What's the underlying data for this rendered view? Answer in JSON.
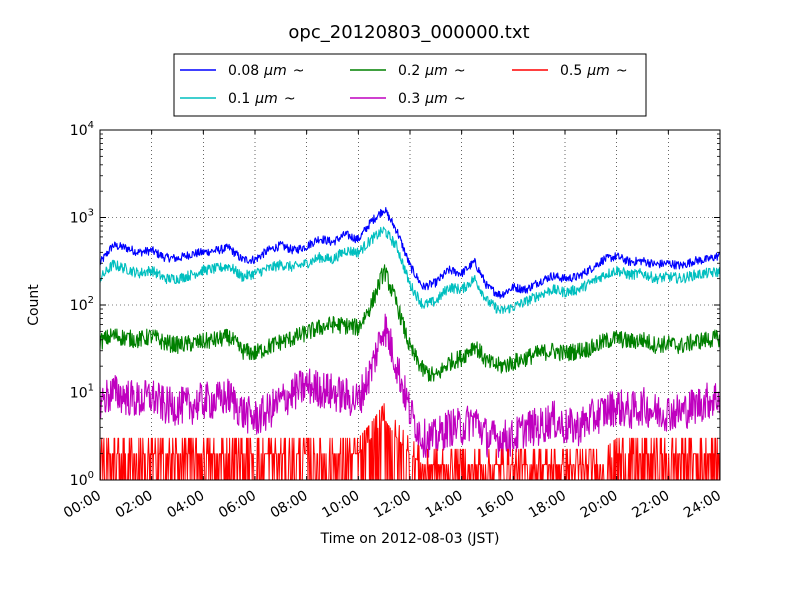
{
  "chart_data": {
    "type": "line",
    "title": "opc_20120803_000000.txt",
    "xlabel": "Time on 2012-08-03 (JST)",
    "ylabel": "Count",
    "x_unit": "hours",
    "xlim": [
      0,
      24
    ],
    "ylim": [
      1,
      10000
    ],
    "yscale": "log",
    "grid": true,
    "legend_position": "top-center",
    "x_ticks": [
      {
        "value": 0,
        "label": "00:00"
      },
      {
        "value": 2,
        "label": "02:00"
      },
      {
        "value": 4,
        "label": "04:00"
      },
      {
        "value": 6,
        "label": "06:00"
      },
      {
        "value": 8,
        "label": "08:00"
      },
      {
        "value": 10,
        "label": "10:00"
      },
      {
        "value": 12,
        "label": "12:00"
      },
      {
        "value": 14,
        "label": "14:00"
      },
      {
        "value": 16,
        "label": "16:00"
      },
      {
        "value": 18,
        "label": "18:00"
      },
      {
        "value": 20,
        "label": "20:00"
      },
      {
        "value": 22,
        "label": "22:00"
      },
      {
        "value": 24,
        "label": "24:00"
      }
    ],
    "y_ticks": [
      {
        "value": 1,
        "base": "10",
        "exp": "0"
      },
      {
        "value": 10,
        "base": "10",
        "exp": "1"
      },
      {
        "value": 100,
        "base": "10",
        "exp": "2"
      },
      {
        "value": 1000,
        "base": "10",
        "exp": "3"
      },
      {
        "value": 10000,
        "base": "10",
        "exp": "4"
      }
    ],
    "x": [
      0,
      0.5,
      1,
      1.5,
      2,
      2.5,
      3,
      3.5,
      4,
      4.5,
      5,
      5.5,
      6,
      6.5,
      7,
      7.5,
      8,
      8.5,
      9,
      9.5,
      10,
      10.5,
      11,
      11.5,
      12,
      12.5,
      13,
      13.5,
      14,
      14.5,
      15,
      15.5,
      16,
      16.5,
      17,
      17.5,
      18,
      18.5,
      19,
      19.5,
      20,
      20.5,
      21,
      21.5,
      22,
      22.5,
      23,
      23.5,
      24
    ],
    "series": [
      {
        "name": "0.08 μm ~",
        "name_text": "0.08",
        "name_unit": "μm",
        "color": "#0000ff",
        "values": [
          300,
          480,
          450,
          400,
          420,
          350,
          340,
          380,
          400,
          420,
          450,
          330,
          330,
          420,
          480,
          420,
          470,
          580,
          520,
          640,
          560,
          900,
          1250,
          700,
          280,
          160,
          180,
          250,
          230,
          310,
          160,
          130,
          160,
          150,
          185,
          215,
          200,
          210,
          260,
          330,
          360,
          310,
          320,
          290,
          300,
          280,
          320,
          330,
          370
        ]
      },
      {
        "name": "0.1 μm ~",
        "name_text": "0.1",
        "name_unit": "μm",
        "color": "#00bfbf",
        "values": [
          200,
          290,
          260,
          230,
          250,
          200,
          200,
          220,
          250,
          260,
          280,
          210,
          230,
          260,
          290,
          270,
          300,
          350,
          330,
          420,
          400,
          560,
          720,
          460,
          170,
          100,
          110,
          160,
          150,
          200,
          110,
          85,
          95,
          110,
          130,
          150,
          140,
          150,
          180,
          220,
          250,
          220,
          230,
          200,
          210,
          200,
          220,
          230,
          240
        ]
      },
      {
        "name": "0.2 μm ~",
        "name_text": "0.2",
        "name_unit": "μm",
        "color": "#008000",
        "values": [
          38,
          45,
          42,
          40,
          44,
          37,
          35,
          36,
          38,
          40,
          43,
          30,
          28,
          33,
          38,
          42,
          48,
          55,
          60,
          58,
          55,
          100,
          250,
          100,
          32,
          18,
          15,
          22,
          25,
          35,
          22,
          20,
          22,
          25,
          28,
          30,
          28,
          30,
          32,
          38,
          42,
          38,
          40,
          35,
          36,
          34,
          38,
          40,
          42
        ]
      },
      {
        "name": "0.3 μm ~",
        "name_text": "0.3",
        "name_unit": "μm",
        "color": "#bf00bf",
        "values": [
          8,
          10,
          9,
          8,
          9,
          7,
          7,
          7,
          8,
          8,
          9,
          6,
          5,
          6,
          8,
          10,
          12,
          11,
          10,
          9,
          8,
          18,
          60,
          20,
          6,
          3,
          3,
          4,
          4,
          5,
          3,
          3,
          3,
          4,
          4,
          5,
          4,
          4,
          5,
          6,
          7,
          6,
          7,
          6,
          6,
          6,
          7,
          8,
          9
        ]
      },
      {
        "name": "0.5 μm ~",
        "name_text": "0.5",
        "name_unit": "μm",
        "color": "#ff0000",
        "values": [
          2,
          2,
          2,
          2,
          2,
          2,
          2,
          2,
          2,
          2,
          2,
          2,
          2,
          2,
          2,
          2,
          2,
          2,
          2,
          2,
          2,
          3,
          5,
          3,
          2,
          1.5,
          1.5,
          1.5,
          1.5,
          1.5,
          1.5,
          1.5,
          1.5,
          1.5,
          1.5,
          1.5,
          1.5,
          1.5,
          1.5,
          1.5,
          2,
          2,
          2,
          2,
          2,
          2,
          2,
          2,
          2
        ]
      }
    ]
  }
}
